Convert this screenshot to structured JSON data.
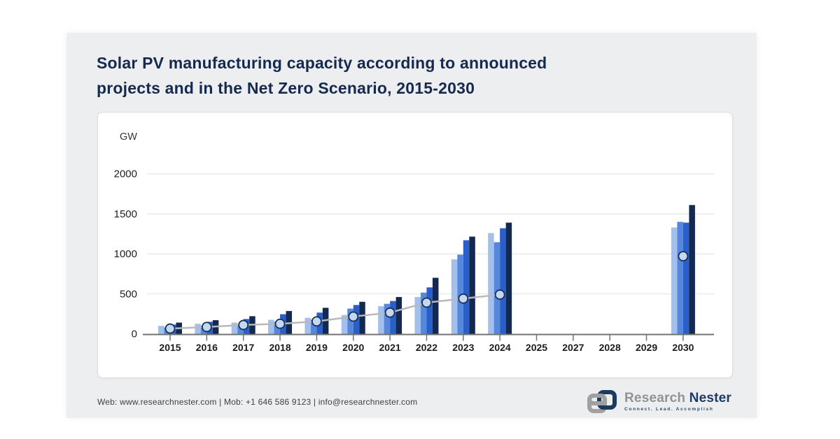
{
  "title": {
    "line1": "Solar PV manufacturing capacity according to announced",
    "line2": "projects and in the Net Zero Scenario, 2015-2030"
  },
  "chart_data": {
    "type": "bar",
    "subtype": "grouped-bars-with-line-overlay",
    "unit_label": "GW",
    "categories": [
      "2015",
      "2016",
      "2017",
      "2018",
      "2019",
      "2020",
      "2021",
      "2022",
      "2023",
      "2024",
      "2025",
      "2027",
      "2028",
      "2029",
      "2030"
    ],
    "series": [
      {
        "name": "bar-series-1",
        "type": "bar",
        "color": "#a3c0ed",
        "values": [
          100,
          125,
          140,
          175,
          200,
          235,
          345,
          460,
          930,
          1260,
          null,
          null,
          null,
          null,
          1330
        ]
      },
      {
        "name": "bar-series-2",
        "type": "bar",
        "color": "#5587dd",
        "values": [
          80,
          100,
          120,
          150,
          175,
          315,
          375,
          515,
          990,
          1145,
          null,
          null,
          null,
          null,
          1400
        ]
      },
      {
        "name": "bar-series-3",
        "type": "bar",
        "color": "#2a5fc9",
        "values": [
          115,
          150,
          185,
          245,
          265,
          360,
          410,
          580,
          1170,
          1320,
          null,
          null,
          null,
          null,
          1390
        ]
      },
      {
        "name": "bar-series-4",
        "type": "bar",
        "color": "#142950",
        "values": [
          140,
          170,
          220,
          285,
          325,
          400,
          460,
          700,
          1215,
          1390,
          null,
          null,
          null,
          null,
          1610
        ]
      },
      {
        "name": "net-zero-scenario-line",
        "type": "line",
        "color": "#b9b9b9",
        "marker_fill": "#c3d9f2",
        "marker_stroke": "#1b3055",
        "values": [
          65,
          85,
          110,
          125,
          155,
          215,
          265,
          390,
          440,
          490,
          null,
          null,
          null,
          null,
          970
        ]
      }
    ],
    "ylim": [
      0,
      2250
    ],
    "yticks": [
      0,
      500,
      1000,
      1500,
      2000
    ],
    "grid": "horizontal",
    "legend": "none"
  },
  "footer": {
    "contact": "Web: www.researchnester.com | Mob: +1 646 586 9123 | info@researchnester.com"
  },
  "logo": {
    "part1": "Research",
    "part2": "Nester",
    "tagline": "Connect. Lead. Accomplish"
  },
  "colors": {
    "card_bg": "#edeeef",
    "panel_bg": "#ffffff",
    "title": "#16294e",
    "axis": "#737373",
    "gridline": "#e6e6e6",
    "tick_label": "#1f1f1f"
  }
}
